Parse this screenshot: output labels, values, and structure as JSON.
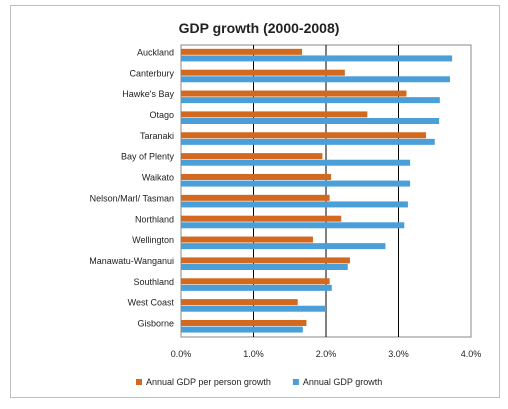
{
  "chart_data": {
    "type": "bar",
    "orientation": "horizontal",
    "title": "GDP growth (2000-2008)",
    "categories": [
      "Auckland",
      "Canterbury",
      "Hawke's Bay",
      "Otago",
      "Taranaki",
      "Bay of Plenty",
      "Waikato",
      "Nelson/Marl/ Tasman",
      "Northland",
      "Wellington",
      "Manawatu-Wanganui",
      "Southland",
      "West Coast",
      "Gisborne"
    ],
    "series": [
      {
        "name": "Annual GDP per person growth",
        "color": "#d2691e",
        "values": [
          1.67,
          2.26,
          3.11,
          2.57,
          3.38,
          1.95,
          2.07,
          2.05,
          2.21,
          1.82,
          2.33,
          2.05,
          1.61,
          1.73
        ]
      },
      {
        "name": "Annual GDP growth",
        "color": "#4a9fd8",
        "values": [
          3.74,
          3.71,
          3.57,
          3.56,
          3.5,
          3.16,
          3.16,
          3.13,
          3.08,
          2.82,
          2.3,
          2.08,
          2.0,
          1.68
        ]
      }
    ],
    "xlim": [
      0,
      4
    ],
    "xticks": [
      "0.0%",
      "1.0%",
      "2.0%",
      "3.0%",
      "4.0%"
    ],
    "grid": true,
    "legend_position": "bottom"
  }
}
